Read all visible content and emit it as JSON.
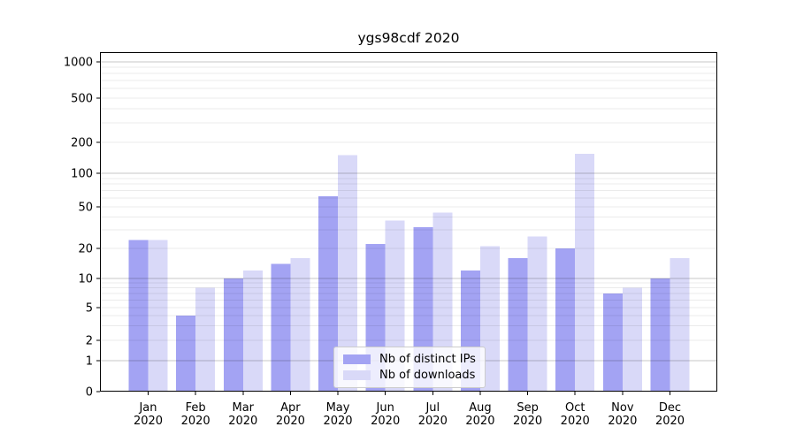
{
  "chart_data": {
    "type": "bar",
    "title": "ygs98cdf 2020",
    "categories": [
      {
        "month": "Jan",
        "year": "2020"
      },
      {
        "month": "Feb",
        "year": "2020"
      },
      {
        "month": "Mar",
        "year": "2020"
      },
      {
        "month": "Apr",
        "year": "2020"
      },
      {
        "month": "May",
        "year": "2020"
      },
      {
        "month": "Jun",
        "year": "2020"
      },
      {
        "month": "Jul",
        "year": "2020"
      },
      {
        "month": "Aug",
        "year": "2020"
      },
      {
        "month": "Sep",
        "year": "2020"
      },
      {
        "month": "Oct",
        "year": "2020"
      },
      {
        "month": "Nov",
        "year": "2020"
      },
      {
        "month": "Dec",
        "year": "2020"
      }
    ],
    "series": [
      {
        "name": "Nb of distinct IPs",
        "color": "#a3a3f3",
        "values": [
          24,
          4,
          10,
          14,
          62,
          22,
          32,
          12,
          16,
          20,
          7,
          10
        ]
      },
      {
        "name": "Nb of downloads",
        "color": "#d9d9f8",
        "values": [
          24,
          8,
          12,
          16,
          150,
          37,
          44,
          21,
          26,
          155,
          8,
          16
        ]
      }
    ],
    "y_axis": {
      "scale": "symlog",
      "ticks": [
        0,
        1,
        2,
        5,
        10,
        20,
        50,
        100,
        200,
        500,
        1000
      ],
      "tick_labels": [
        "0",
        "1",
        "2",
        "5",
        "10",
        "20",
        "50",
        "100",
        "200",
        "500",
        "1000"
      ],
      "range": [
        0,
        1200
      ]
    },
    "grid": true,
    "legend": {
      "position": "lower-center-inside"
    },
    "colors": {
      "axis": "#000000",
      "decade_gridline": "rgba(0,0,0,0.22)",
      "minor_gridline": "rgba(0,0,0,0.08)",
      "tick_text": "#000000"
    }
  }
}
